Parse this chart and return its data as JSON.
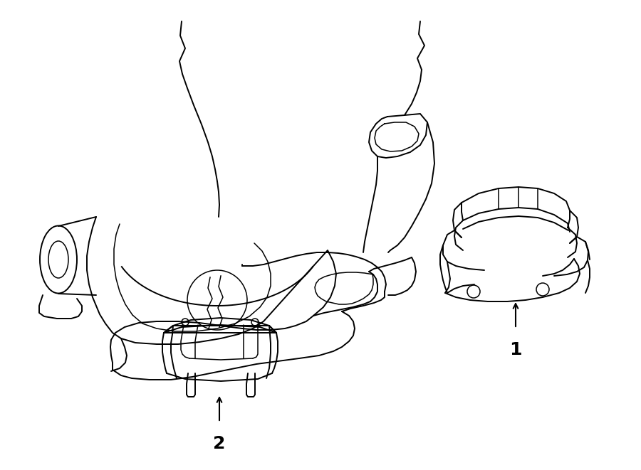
{
  "background_color": "#ffffff",
  "line_color": "#000000",
  "lw_main": 1.4,
  "lw_detail": 1.1,
  "fig_width": 9.0,
  "fig_height": 6.61
}
